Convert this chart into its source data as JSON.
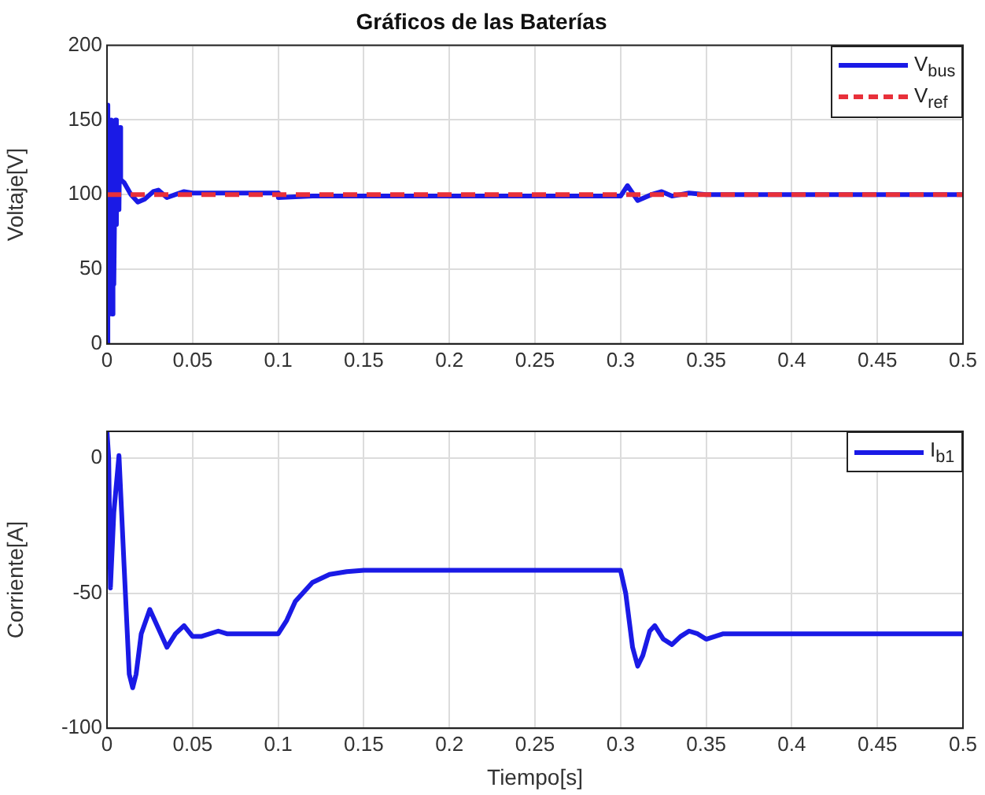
{
  "chart_data": [
    {
      "type": "line",
      "title": "Gráficos de las Baterías",
      "ylabel": "Voltaje[V]",
      "xlim": [
        0,
        0.5
      ],
      "xticks": [
        0,
        0.05,
        0.1,
        0.15,
        0.2,
        0.25,
        0.3,
        0.35,
        0.4,
        0.45,
        0.5
      ],
      "ylim": [
        0,
        200
      ],
      "yticks": [
        0,
        50,
        100,
        150,
        200
      ],
      "grid": true,
      "legend": "top right",
      "marker": "none",
      "series": [
        {
          "name": "V$_{bus}$",
          "color": "#1a1ae6",
          "line_style": "solid",
          "x": [
            0,
            0.0005,
            0.001,
            0.0015,
            0.002,
            0.0025,
            0.003,
            0.0035,
            0.004,
            0.005,
            0.0055,
            0.006,
            0.007,
            0.0075,
            0.008,
            0.01,
            0.014,
            0.018,
            0.022,
            0.027,
            0.03,
            0.035,
            0.04,
            0.045,
            0.05,
            0.1,
            0.1001,
            0.12,
            0.3,
            0.304,
            0.31,
            0.318,
            0.324,
            0.33,
            0.34,
            0.35,
            0.5
          ],
          "values": [
            0,
            160,
            20,
            150,
            60,
            150,
            20,
            145,
            40,
            150,
            80,
            145,
            90,
            145,
            110,
            108,
            100,
            95,
            97,
            102,
            103,
            98,
            100,
            102,
            101,
            101,
            98,
            99,
            99,
            106,
            96,
            100,
            102,
            99,
            101,
            100,
            100
          ]
        },
        {
          "name": "V$_{ref}$",
          "color": "#e8303a",
          "line_style": "dashed",
          "x": [
            0,
            0.5
          ],
          "values": [
            100,
            100
          ]
        }
      ]
    },
    {
      "type": "line",
      "xlabel": "Tiempo[s]",
      "ylabel": "Corriente[A]",
      "xlim": [
        0,
        0.5
      ],
      "xticks": [
        0,
        0.05,
        0.1,
        0.15,
        0.2,
        0.25,
        0.3,
        0.35,
        0.4,
        0.45,
        0.5
      ],
      "ylim": [
        -100,
        10
      ],
      "yticks": [
        -100,
        -50,
        0
      ],
      "grid": true,
      "legend": "top right",
      "marker": "none",
      "series": [
        {
          "name": "I$_{b1}$",
          "color": "#1a1ae6",
          "line_style": "solid",
          "x": [
            0,
            0.001,
            0.002,
            0.004,
            0.007,
            0.01,
            0.013,
            0.015,
            0.017,
            0.02,
            0.025,
            0.03,
            0.035,
            0.04,
            0.045,
            0.05,
            0.055,
            0.065,
            0.07,
            0.1,
            0.105,
            0.11,
            0.12,
            0.13,
            0.14,
            0.15,
            0.3,
            0.303,
            0.307,
            0.31,
            0.313,
            0.317,
            0.32,
            0.325,
            0.33,
            0.335,
            0.34,
            0.345,
            0.35,
            0.36,
            0.5
          ],
          "values": [
            10,
            0,
            -48,
            -20,
            1,
            -40,
            -80,
            -85,
            -80,
            -65,
            -56,
            -63,
            -70,
            -65,
            -62,
            -66,
            -66,
            -64,
            -65,
            -65,
            -60,
            -53,
            -46,
            -43,
            -42,
            -41.5,
            -41.5,
            -50,
            -70,
            -77,
            -73,
            -64,
            -62,
            -67,
            -69,
            -66,
            -64,
            -65,
            -67,
            -65,
            -65
          ]
        }
      ]
    }
  ]
}
